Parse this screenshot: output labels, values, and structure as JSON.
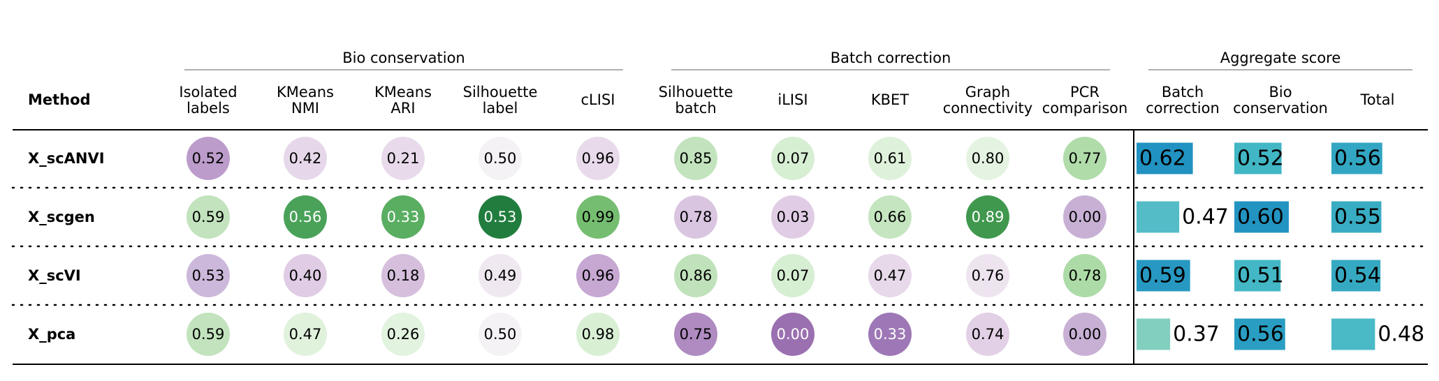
{
  "chart_data": {
    "type": "table",
    "method_header": "Method",
    "groups": [
      {
        "label": "Bio conservation",
        "columns": [
          0,
          1,
          2,
          3,
          4
        ]
      },
      {
        "label": "Batch correction",
        "columns": [
          5,
          6,
          7,
          8,
          9
        ]
      },
      {
        "label": "Aggregate score",
        "columns": [
          10,
          11,
          12
        ]
      }
    ],
    "columns": [
      {
        "label": [
          "Isolated",
          "labels"
        ],
        "kind": "circle"
      },
      {
        "label": [
          "KMeans",
          "NMI"
        ],
        "kind": "circle"
      },
      {
        "label": [
          "KMeans",
          "ARI"
        ],
        "kind": "circle"
      },
      {
        "label": [
          "Silhouette",
          "label"
        ],
        "kind": "circle"
      },
      {
        "label": [
          "cLISI"
        ],
        "kind": "circle"
      },
      {
        "label": [
          "Silhouette",
          "batch"
        ],
        "kind": "circle"
      },
      {
        "label": [
          "iLISI"
        ],
        "kind": "circle"
      },
      {
        "label": [
          "KBET"
        ],
        "kind": "circle"
      },
      {
        "label": [
          "Graph",
          "connectivity"
        ],
        "kind": "circle"
      },
      {
        "label": [
          "PCR",
          "comparison"
        ],
        "kind": "circle"
      },
      {
        "label": [
          "Batch",
          "correction"
        ],
        "kind": "bar"
      },
      {
        "label": [
          "Bio",
          "conservation"
        ],
        "kind": "bar"
      },
      {
        "label": [
          "Total"
        ],
        "kind": "bar"
      }
    ],
    "rows": [
      {
        "method": "X_scANVI",
        "values": [
          "0.52",
          "0.42",
          "0.21",
          "0.50",
          "0.96",
          "0.85",
          "0.07",
          "0.61",
          "0.80",
          "0.77",
          "0.62",
          "0.52",
          "0.56"
        ]
      },
      {
        "method": "X_scgen",
        "values": [
          "0.59",
          "0.56",
          "0.33",
          "0.53",
          "0.99",
          "0.78",
          "0.03",
          "0.66",
          "0.89",
          "0.00",
          "0.47",
          "0.60",
          "0.55"
        ]
      },
      {
        "method": "X_scVI",
        "values": [
          "0.53",
          "0.40",
          "0.18",
          "0.49",
          "0.96",
          "0.86",
          "0.07",
          "0.47",
          "0.76",
          "0.78",
          "0.59",
          "0.51",
          "0.54"
        ]
      },
      {
        "method": "X_pca",
        "values": [
          "0.59",
          "0.47",
          "0.26",
          "0.50",
          "0.98",
          "0.75",
          "0.00",
          "0.33",
          "0.74",
          "0.00",
          "0.37",
          "0.56",
          "0.48"
        ]
      }
    ],
    "circle_colors": [
      [
        "#bc9ccb",
        "#e6d8ea",
        "#e8daeb",
        "#f4f2f5",
        "#e8daeb",
        "#c2e3bd",
        "#d6eed2",
        "#def1da",
        "#e5f4e2",
        "#b0dcaa"
      ],
      [
        "#c2e3bd",
        "#4aa259",
        "#59ae61",
        "#217d3e",
        "#75bd70",
        "#dac5e1",
        "#e0cce5",
        "#c5e5c0",
        "#3f984d",
        "#c8b0d5"
      ],
      [
        "#ccb8da",
        "#e0cce5",
        "#d5bfdd",
        "#efe8f0",
        "#c6a8d3",
        "#c0e2bb",
        "#d6eed2",
        "#e7d8ea",
        "#ede4ef",
        "#addba7"
      ],
      [
        "#c2e3bd",
        "#e0f2dc",
        "#e2f3df",
        "#f4f2f5",
        "#d8efd4",
        "#af8bc1",
        "#9a70b0",
        "#9e78b6",
        "#e2d0e6",
        "#c8b0d5"
      ]
    ],
    "light_text": [
      [
        false,
        false,
        false,
        false,
        false,
        false,
        false,
        false,
        false,
        false
      ],
      [
        false,
        true,
        true,
        true,
        false,
        false,
        false,
        false,
        true,
        false
      ],
      [
        false,
        false,
        false,
        false,
        false,
        false,
        false,
        false,
        false,
        false
      ],
      [
        false,
        false,
        false,
        false,
        false,
        false,
        true,
        true,
        false,
        false
      ]
    ],
    "bar_colors": [
      [
        "#2192c1",
        "#41b6c4",
        "#32a6c2"
      ],
      [
        "#53bcc7",
        "#2394c1",
        "#38acc3"
      ],
      [
        "#2798c2",
        "#43b7c5",
        "#36a9c2"
      ],
      [
        "#82cfbf",
        "#2a9ec2",
        "#49bac6"
      ]
    ]
  }
}
